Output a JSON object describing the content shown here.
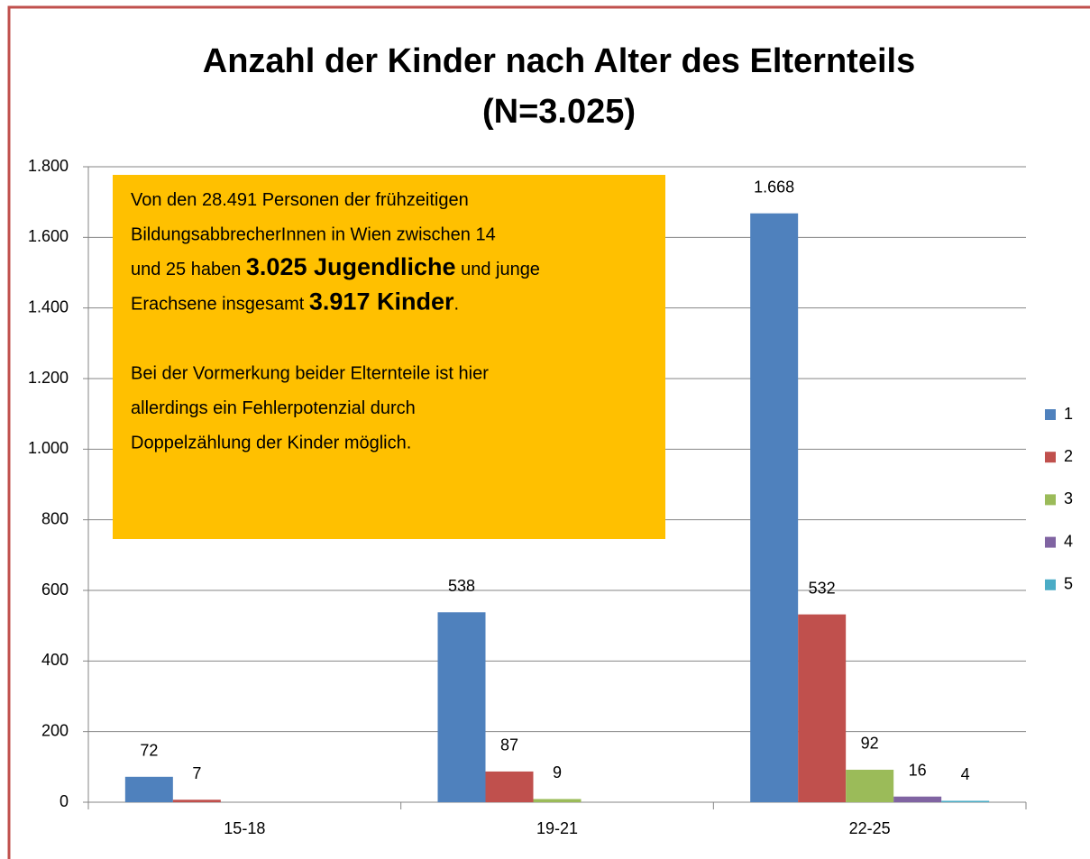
{
  "chart_data": {
    "type": "bar",
    "title": [
      "Anzahl der Kinder nach Alter des Elternteils",
      "(N=3.025)"
    ],
    "categories": [
      "15-18",
      "19-21",
      "22-25"
    ],
    "series": [
      {
        "name": "1",
        "color": "#4F81BD",
        "values": [
          72,
          538,
          1668
        ],
        "value_labels": [
          "72",
          "538",
          "1.668"
        ]
      },
      {
        "name": "2",
        "color": "#C0504D",
        "values": [
          7,
          87,
          532
        ],
        "value_labels": [
          "7",
          "87",
          "532"
        ]
      },
      {
        "name": "3",
        "color": "#9BBB59",
        "values": [
          null,
          9,
          92
        ],
        "value_labels": [
          null,
          "9",
          "92"
        ]
      },
      {
        "name": "4",
        "color": "#8064A2",
        "values": [
          null,
          null,
          16
        ],
        "value_labels": [
          null,
          null,
          "16"
        ]
      },
      {
        "name": "5",
        "color": "#4BACC6",
        "values": [
          null,
          null,
          4
        ],
        "value_labels": [
          null,
          null,
          "4"
        ]
      }
    ],
    "ylim": [
      0,
      1800
    ],
    "yticks": [
      0,
      200,
      400,
      600,
      800,
      {
        "value": 1000,
        "label": "1.000"
      },
      {
        "value": 1200,
        "label": "1.200"
      },
      {
        "value": 1400,
        "label": "1.400"
      },
      {
        "value": 1600,
        "label": "1.600"
      },
      {
        "value": 1800,
        "label": "1.800"
      }
    ],
    "grid": true,
    "legend": "right",
    "annotation": [
      [
        [
          "Von den 28.491 Personen der frühzeitigen"
        ],
        [
          "BildungsabbrecherInnen in Wien zwischen 14"
        ],
        [
          "und 25 haben ",
          {
            "bold": "3.025 Jugendliche"
          },
          " und junge"
        ],
        [
          "Erachsene insgesamt ",
          {
            "bold": "3.917 Kinder"
          },
          "."
        ]
      ],
      [
        [
          "Bei der Vormerkung beider Elternteile ist hier"
        ],
        [
          "allerdings ein Fehlerpotenzial durch"
        ],
        [
          "Doppelzählung der Kinder möglich."
        ]
      ]
    ]
  }
}
